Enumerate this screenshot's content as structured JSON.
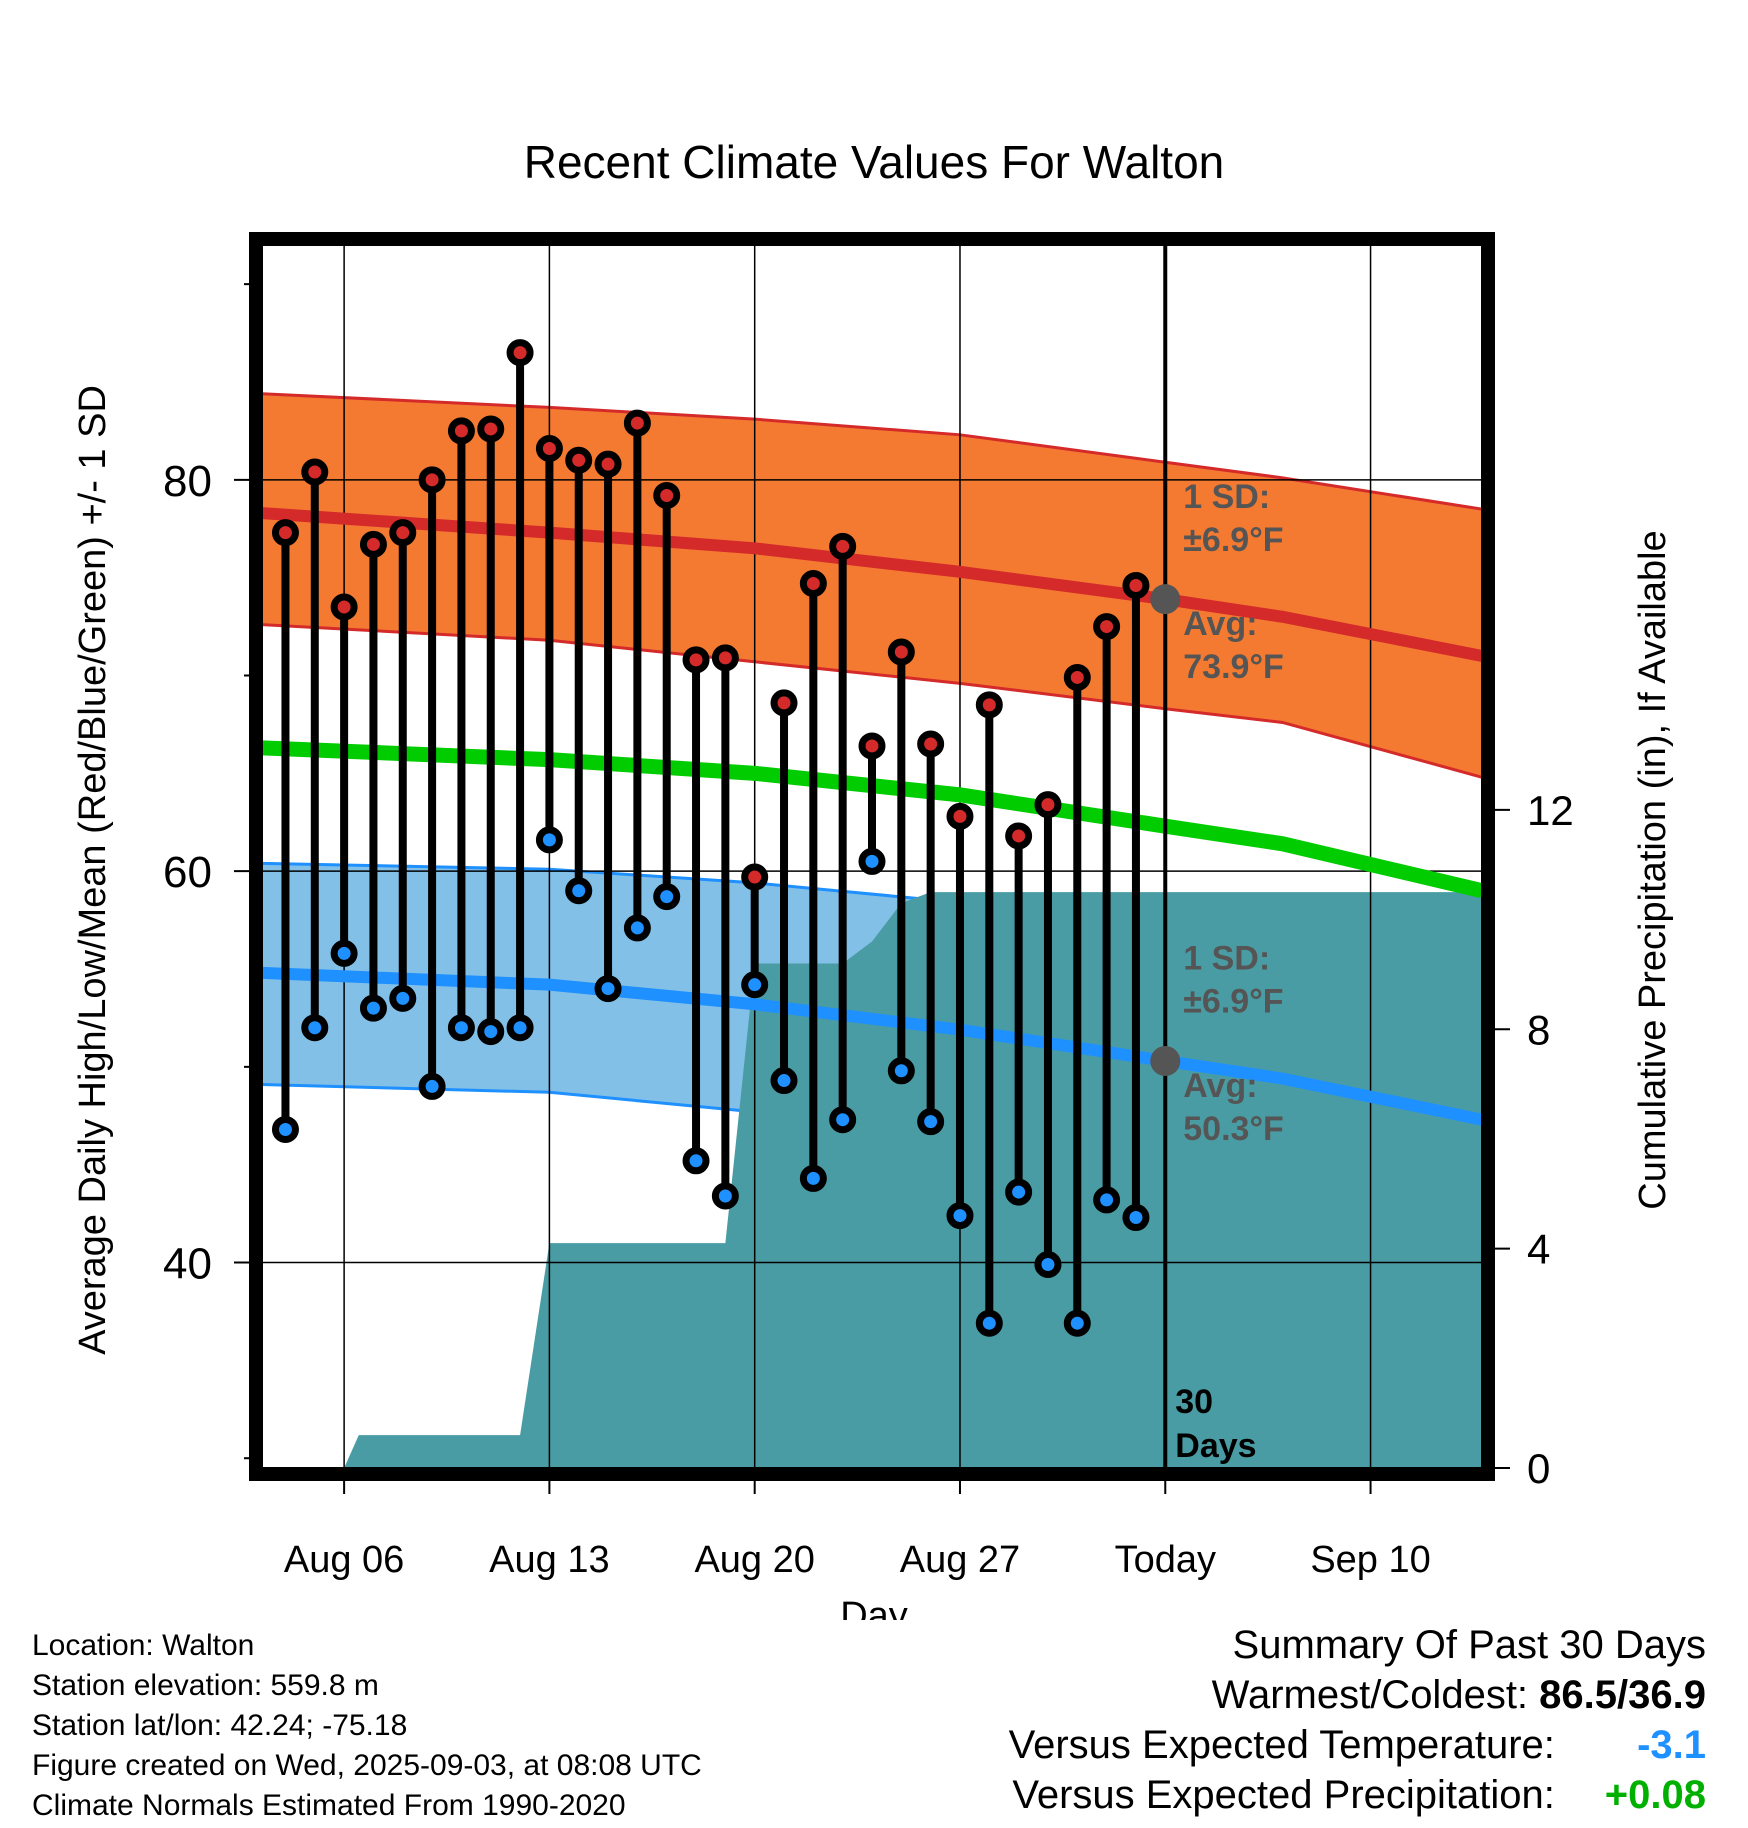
{
  "chart_data": {
    "type": "line",
    "title": "Recent Climate Values For Walton",
    "xlabel": "Day",
    "ylabel": "Average Daily High/Low/Mean (Red/Blue/Green) +/- 1 SD",
    "y2label": "Cumulative Precipitation (in), If Available",
    "ylim": [
      29.5,
      92
    ],
    "y2lim": [
      0,
      22.3
    ],
    "yticks": [
      40,
      60,
      80
    ],
    "y2ticks": [
      0,
      4,
      8,
      12
    ],
    "xlim": [
      0.2,
      41.8
    ],
    "xticks": [
      {
        "day": 3,
        "label": "Aug 06"
      },
      {
        "day": 10,
        "label": "Aug 13"
      },
      {
        "day": 17,
        "label": "Aug 20"
      },
      {
        "day": 24,
        "label": "Aug 27"
      },
      {
        "day": 31,
        "label": "Today"
      },
      {
        "day": 38,
        "label": "Sep 10"
      }
    ],
    "today_day": 31,
    "today_label": "30\nDays",
    "observed": [
      {
        "day": 1,
        "high": 77.3,
        "low": 46.8
      },
      {
        "day": 2,
        "high": 80.4,
        "low": 52.0
      },
      {
        "day": 3,
        "high": 73.5,
        "low": 55.8
      },
      {
        "day": 4,
        "high": 76.7,
        "low": 53.0
      },
      {
        "day": 5,
        "high": 77.3,
        "low": 53.5
      },
      {
        "day": 6,
        "high": 80.0,
        "low": 49.0
      },
      {
        "day": 7,
        "high": 82.5,
        "low": 52.0
      },
      {
        "day": 8,
        "high": 82.6,
        "low": 51.8
      },
      {
        "day": 9,
        "high": 86.5,
        "low": 52.0
      },
      {
        "day": 10,
        "high": 81.6,
        "low": 61.6
      },
      {
        "day": 11,
        "high": 81.0,
        "low": 59.0
      },
      {
        "day": 12,
        "high": 80.8,
        "low": 54.0
      },
      {
        "day": 13,
        "high": 82.9,
        "low": 57.1
      },
      {
        "day": 14,
        "high": 79.2,
        "low": 58.7
      },
      {
        "day": 15,
        "high": 70.8,
        "low": 45.2
      },
      {
        "day": 16,
        "high": 70.9,
        "low": 43.4
      },
      {
        "day": 17,
        "high": 59.7,
        "low": 54.2
      },
      {
        "day": 18,
        "high": 68.6,
        "low": 49.3
      },
      {
        "day": 19,
        "high": 74.7,
        "low": 44.3
      },
      {
        "day": 20,
        "high": 76.6,
        "low": 47.3
      },
      {
        "day": 21,
        "high": 66.4,
        "low": 60.5
      },
      {
        "day": 22,
        "high": 71.2,
        "low": 49.8
      },
      {
        "day": 23,
        "high": 66.5,
        "low": 47.2
      },
      {
        "day": 24,
        "high": 62.8,
        "low": 42.4
      },
      {
        "day": 25,
        "high": 68.5,
        "low": 36.9
      },
      {
        "day": 26,
        "high": 61.8,
        "low": 43.6
      },
      {
        "day": 27,
        "high": 63.4,
        "low": 39.9
      },
      {
        "day": 28,
        "high": 69.9,
        "low": 36.9
      },
      {
        "day": 29,
        "high": 72.5,
        "low": 43.2
      },
      {
        "day": 30,
        "high": 74.6,
        "low": 42.3
      }
    ],
    "normals": {
      "days": [
        0.2,
        10,
        17,
        24,
        31,
        35,
        41.8
      ],
      "high_avg": [
        78.3,
        77.3,
        76.5,
        75.3,
        73.9,
        73.0,
        71.0
      ],
      "high_upper": [
        84.4,
        83.7,
        83.1,
        82.3,
        80.9,
        80.1,
        78.5
      ],
      "high_lower": [
        72.6,
        71.8,
        70.7,
        69.6,
        68.3,
        67.6,
        64.8
      ],
      "low_avg": [
        54.8,
        54.2,
        53.2,
        51.9,
        50.3,
        49.4,
        47.3
      ],
      "low_upper": [
        60.4,
        60.1,
        59.4,
        58.4,
        57.0,
        56.4,
        55.2
      ],
      "low_lower": [
        49.1,
        48.7,
        47.7,
        46.5,
        44.7,
        43.8,
        40.8
      ],
      "mean_avg": [
        66.3,
        65.7,
        65.0,
        63.9,
        62.3,
        61.4,
        59.0
      ]
    },
    "precip_cumulative": {
      "days": [
        0.2,
        3,
        3.5,
        9,
        10,
        16,
        17,
        20,
        21,
        22,
        23,
        31,
        41.8
      ],
      "values": [
        0,
        0,
        0.6,
        0.6,
        4.1,
        4.1,
        9.2,
        9.2,
        9.6,
        10.3,
        10.5,
        10.5,
        10.5
      ]
    },
    "annotations": {
      "high_sd": "1 SD:",
      "high_sd_val": "±6.9°F",
      "high_avg_label": "Avg:",
      "high_avg_val": "73.9°F",
      "low_sd": "1 SD:",
      "low_sd_val": "±6.9°F",
      "low_avg_label": "Avg:",
      "low_avg_val": "50.3°F"
    },
    "colors": {
      "high_band": "#f47a32",
      "high_line": "#d42a2a",
      "low_band": "#82c0e8",
      "low_line": "#1e90ff",
      "mean_line": "#00cc00",
      "precip": "#4a9ca4",
      "high_dot": "#d42a2a",
      "low_dot": "#1e90ff",
      "annotation": "#555555"
    }
  },
  "footer": {
    "location": "Location: Walton",
    "elevation": "Station elevation: 559.8 m",
    "latlon": "Station lat/lon: 42.24; -75.18",
    "created": "Figure created on Wed, 2025-09-03, at 08:08 UTC",
    "normals": "Climate Normals Estimated From 1990-2020"
  },
  "summary": {
    "title": "Summary Of Past 30 Days",
    "warmest_label": "Warmest/Coldest:",
    "warmest_value": "86.5/36.9",
    "temp_label": "Versus Expected Temperature:",
    "temp_value": "-3.1",
    "temp_color": "#1e90ff",
    "precip_label": "Versus Expected Precipitation:",
    "precip_value": "+0.08",
    "precip_color": "#00b000"
  }
}
